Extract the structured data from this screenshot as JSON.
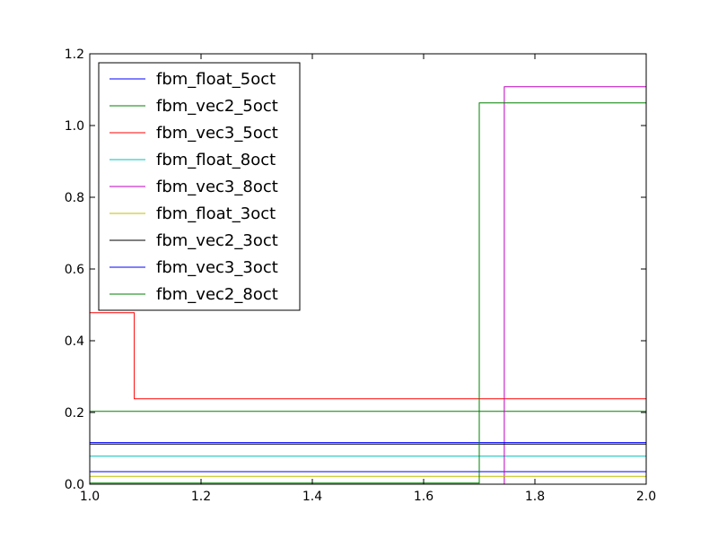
{
  "chart_data": {
    "type": "line",
    "title": "",
    "xlabel": "",
    "ylabel": "",
    "xlim": [
      1.0,
      2.0
    ],
    "ylim": [
      0.0,
      1.2
    ],
    "xticks": [
      "1.0",
      "1.2",
      "1.4",
      "1.6",
      "1.8",
      "2.0"
    ],
    "yticks": [
      "0.0",
      "0.2",
      "0.4",
      "0.6",
      "0.8",
      "1.0",
      "1.2"
    ],
    "legend_position": "top-left",
    "grid": false,
    "series": [
      {
        "name": "fbm_float_5oct",
        "color": "#0000ff",
        "x": [
          1.0,
          2.0
        ],
        "y": [
          0.035,
          0.035
        ]
      },
      {
        "name": "fbm_vec2_5oct",
        "color": "#008000",
        "x": [
          1.0,
          2.0
        ],
        "y": [
          0.203,
          0.203
        ]
      },
      {
        "name": "fbm_vec3_5oct",
        "color": "#ff0000",
        "x": [
          1.0,
          1.08,
          1.08,
          2.0
        ],
        "y": [
          0.478,
          0.478,
          0.238,
          0.238
        ]
      },
      {
        "name": "fbm_float_8oct",
        "color": "#00bfbf",
        "x": [
          1.0,
          2.0
        ],
        "y": [
          0.078,
          0.078
        ]
      },
      {
        "name": "fbm_vec3_8oct",
        "color": "#bf00bf",
        "x": [
          1.0,
          1.745,
          1.745,
          2.0
        ],
        "y": [
          0.0,
          0.0,
          1.108,
          1.108
        ]
      },
      {
        "name": "fbm_float_3oct",
        "color": "#bfbf00",
        "x": [
          1.0,
          2.0
        ],
        "y": [
          0.022,
          0.022
        ]
      },
      {
        "name": "fbm_vec2_3oct",
        "color": "#000000",
        "x": [
          1.0,
          2.0
        ],
        "y": [
          0.112,
          0.112
        ]
      },
      {
        "name": "fbm_vec3_3oct",
        "color": "#0000ff",
        "x": [
          1.0,
          2.0
        ],
        "y": [
          0.116,
          0.116
        ]
      },
      {
        "name": "fbm_vec2_8oct",
        "color": "#008000",
        "x": [
          1.0,
          1.7,
          1.7,
          2.0
        ],
        "y": [
          0.003,
          0.003,
          1.063,
          1.063
        ]
      }
    ]
  }
}
